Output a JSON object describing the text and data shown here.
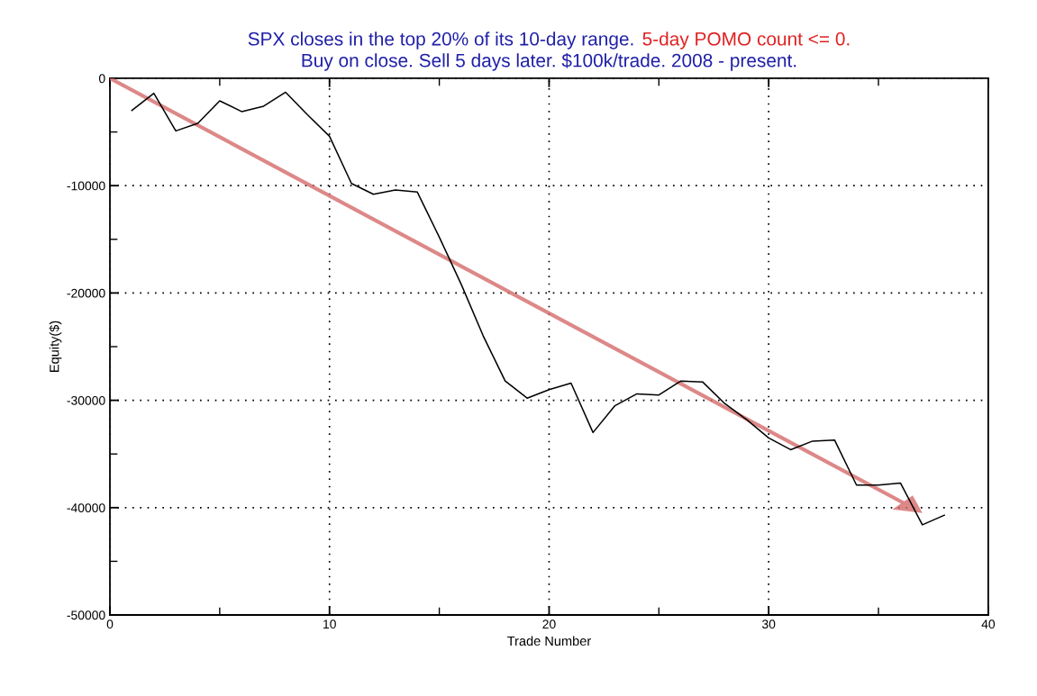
{
  "chart_data": {
    "type": "line",
    "title": "SPX closes in the top 20% of its 10-day range.",
    "subtitle": "Buy on close. Sell 5 days later. $100k/trade. 2008 - present.",
    "annotations": [
      "5-day POMO count <= 0."
    ],
    "xlabel": "Trade Number",
    "ylabel": "Equity($)",
    "x": [
      1,
      2,
      3,
      4,
      5,
      6,
      7,
      8,
      9,
      10,
      11,
      12,
      13,
      14,
      15,
      16,
      17,
      18,
      19,
      20,
      21,
      22,
      23,
      24,
      25,
      26,
      27,
      28,
      29,
      30,
      31,
      32,
      33,
      34,
      35,
      36,
      37,
      38
    ],
    "series": [
      {
        "color": "#000000",
        "values": [
          -3000,
          -1400,
          -4900,
          -4200,
          -2100,
          -3100,
          -2600,
          -1300,
          -3400,
          -5400,
          -9800,
          -10800,
          -10400,
          -10600,
          -14800,
          -19200,
          -24000,
          -28200,
          -29800,
          -29000,
          -28400,
          -33000,
          -30500,
          -29400,
          -29500,
          -28200,
          -28300,
          -30300,
          -31800,
          -33500,
          -34600,
          -33800,
          -33700,
          -37900,
          -37900,
          -37700,
          -41600,
          -40700
        ]
      }
    ],
    "xlim": [
      0,
      40
    ],
    "xticks": [
      0,
      10,
      20,
      30,
      40
    ],
    "ylim": [
      -50000,
      0
    ],
    "yticks": [
      -50000,
      -40000,
      -30000,
      -20000,
      -10000,
      0
    ],
    "grid": true,
    "marker": "none",
    "line_style": "solid"
  }
}
